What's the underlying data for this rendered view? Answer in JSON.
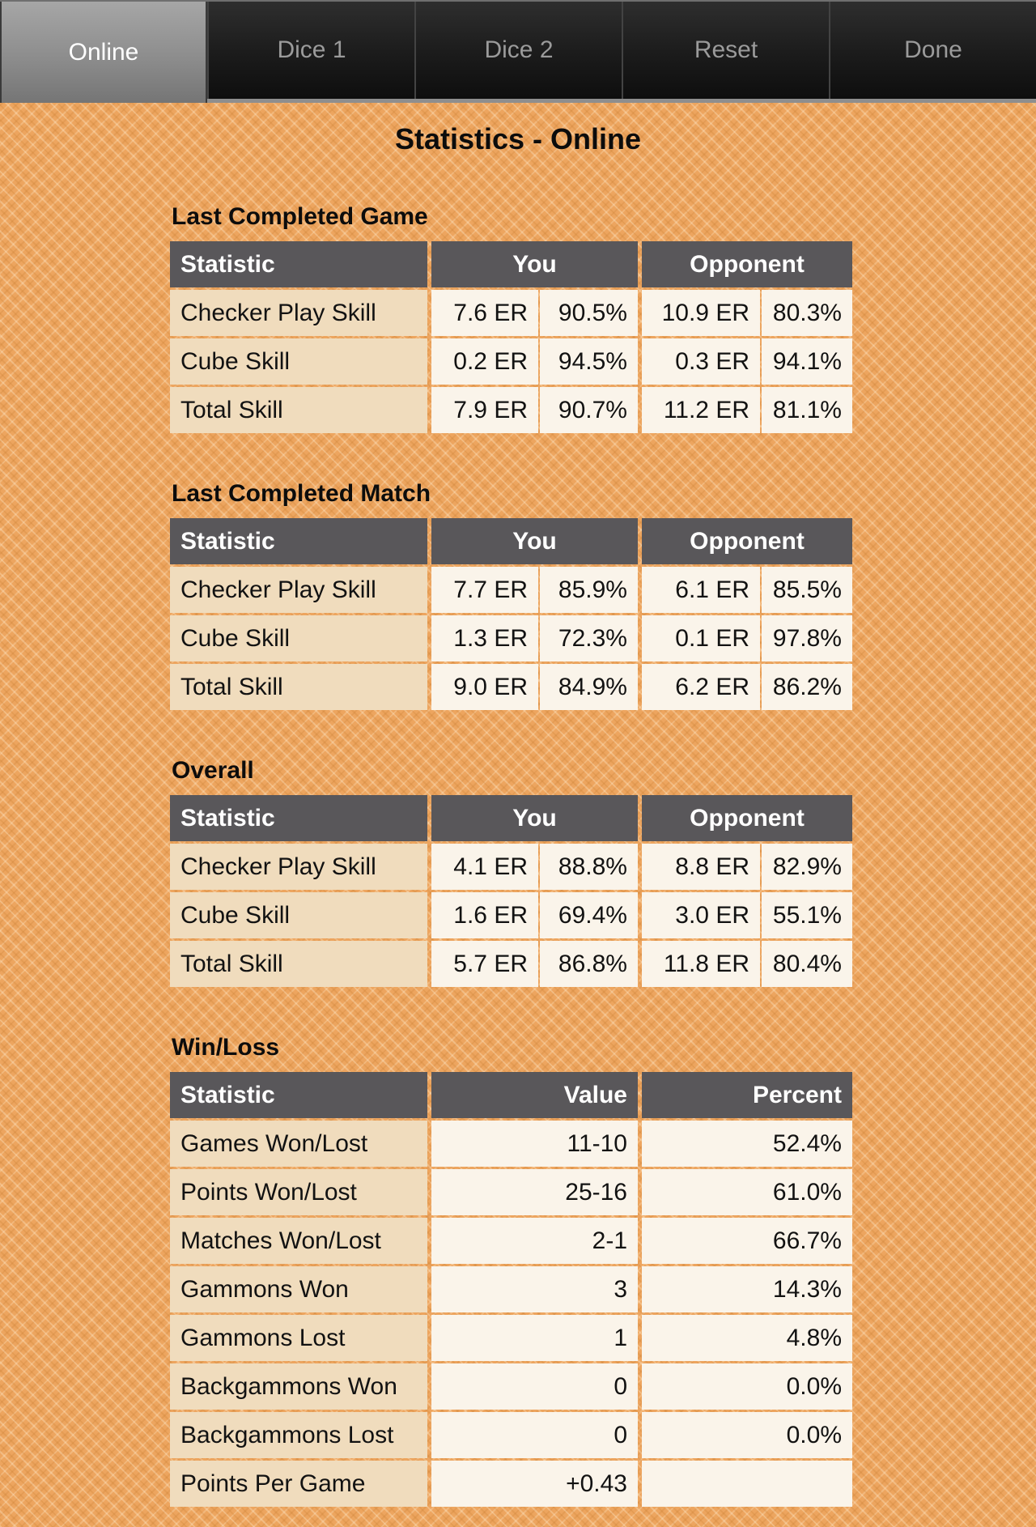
{
  "tab_bar": {
    "tabs": [
      {
        "id": "online",
        "label": "Online",
        "selected": true
      },
      {
        "id": "dice-1",
        "label": "Dice 1",
        "selected": false
      },
      {
        "id": "dice-2",
        "label": "Dice 2",
        "selected": false
      },
      {
        "id": "reset",
        "label": "Reset",
        "selected": false
      },
      {
        "id": "done",
        "label": "Done",
        "selected": false
      }
    ]
  },
  "page": {
    "title": "Statistics - Online"
  },
  "skill_column_headers": {
    "statistic": "Statistic",
    "you": "You",
    "opponent": "Opponent"
  },
  "winloss_column_headers": {
    "statistic": "Statistic",
    "value": "Value",
    "percent": "Percent"
  },
  "sections": [
    {
      "heading": "Last Completed Game",
      "type": "skill",
      "rows": [
        {
          "label": "Checker Play Skill",
          "you_er": "7.6 ER",
          "you_pct": "90.5%",
          "opp_er": "10.9 ER",
          "opp_pct": "80.3%"
        },
        {
          "label": "Cube Skill",
          "you_er": "0.2 ER",
          "you_pct": "94.5%",
          "opp_er": "0.3 ER",
          "opp_pct": "94.1%"
        },
        {
          "label": "Total Skill",
          "you_er": "7.9 ER",
          "you_pct": "90.7%",
          "opp_er": "11.2 ER",
          "opp_pct": "81.1%"
        }
      ]
    },
    {
      "heading": "Last Completed Match",
      "type": "skill",
      "rows": [
        {
          "label": "Checker Play Skill",
          "you_er": "7.7 ER",
          "you_pct": "85.9%",
          "opp_er": "6.1 ER",
          "opp_pct": "85.5%"
        },
        {
          "label": "Cube Skill",
          "you_er": "1.3 ER",
          "you_pct": "72.3%",
          "opp_er": "0.1 ER",
          "opp_pct": "97.8%"
        },
        {
          "label": "Total Skill",
          "you_er": "9.0 ER",
          "you_pct": "84.9%",
          "opp_er": "6.2 ER",
          "opp_pct": "86.2%"
        }
      ]
    },
    {
      "heading": "Overall",
      "type": "skill",
      "rows": [
        {
          "label": "Checker Play Skill",
          "you_er": "4.1 ER",
          "you_pct": "88.8%",
          "opp_er": "8.8 ER",
          "opp_pct": "82.9%"
        },
        {
          "label": "Cube Skill",
          "you_er": "1.6 ER",
          "you_pct": "69.4%",
          "opp_er": "3.0 ER",
          "opp_pct": "55.1%"
        },
        {
          "label": "Total Skill",
          "you_er": "5.7 ER",
          "you_pct": "86.8%",
          "opp_er": "11.8 ER",
          "opp_pct": "80.4%"
        }
      ]
    },
    {
      "heading": "Win/Loss",
      "type": "winloss",
      "rows": [
        {
          "label": "Games Won/Lost",
          "value": "11-10",
          "percent": "52.4%"
        },
        {
          "label": "Points Won/Lost",
          "value": "25-16",
          "percent": "61.0%"
        },
        {
          "label": "Matches Won/Lost",
          "value": "2-1",
          "percent": "66.7%"
        },
        {
          "label": "Gammons Won",
          "value": "3",
          "percent": "14.3%"
        },
        {
          "label": "Gammons Lost",
          "value": "1",
          "percent": "4.8%"
        },
        {
          "label": "Backgammons Won",
          "value": "0",
          "percent": "0.0%"
        },
        {
          "label": "Backgammons Lost",
          "value": "0",
          "percent": "0.0%"
        },
        {
          "label": "Points Per Game",
          "value": "+0.43",
          "percent": ""
        }
      ]
    }
  ],
  "colors": {
    "background_orange": "#eda55f",
    "table_header_bg": "#59575a",
    "table_header_text": "#ffffff",
    "label_cell_bg": "#f0dcbd",
    "value_cell_bg": "#faf4ea",
    "body_text": "#121212",
    "tab_selected_bg": "#8d8d8d",
    "tab_bar_bg": "#1b1b1b",
    "tab_selected_text": "#ffffff",
    "tab_unselected_text": "#9b9b9b"
  }
}
